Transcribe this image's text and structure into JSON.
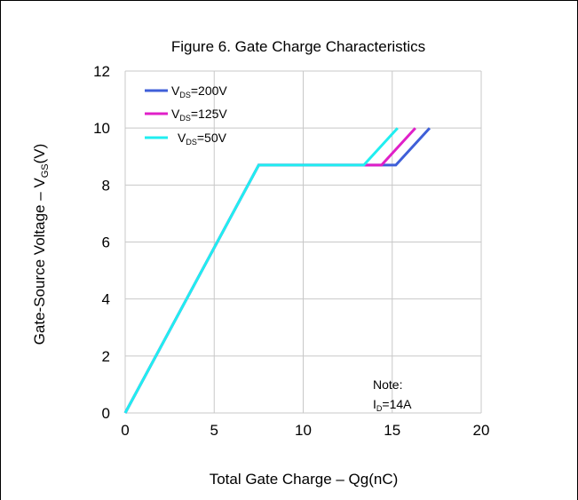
{
  "chart_data": {
    "type": "line",
    "title": "Figure 6. Gate Charge Characteristics",
    "xlabel": "Total Gate Charge – Qg(nC)",
    "ylabel": "Gate-Source Voltage – VGS(V)",
    "xlim": [
      0,
      20
    ],
    "ylim": [
      0,
      12
    ],
    "xticks": [
      0,
      5,
      10,
      15,
      20
    ],
    "yticks": [
      0,
      2,
      4,
      6,
      8,
      10,
      12
    ],
    "grid": true,
    "legend_position": "top-left",
    "series": [
      {
        "name": "VDS=200V",
        "label_main": "V",
        "label_sub": "DS",
        "label_rest": "=200V",
        "color": "#3f5fd8",
        "x": [
          0,
          7.5,
          15.2,
          17.1
        ],
        "y": [
          0,
          8.7,
          8.7,
          10
        ]
      },
      {
        "name": "VDS=125V",
        "label_main": "V",
        "label_sub": "DS",
        "label_rest": "=125V",
        "color": "#e020c8",
        "x": [
          0,
          7.5,
          14.4,
          16.3
        ],
        "y": [
          0,
          8.7,
          8.7,
          10
        ]
      },
      {
        "name": "VDS=50V",
        "label_main": "V",
        "label_sub": "DS",
        "label_rest": "=50V",
        "color": "#20eef0",
        "x": [
          0,
          7.5,
          13.4,
          15.3
        ],
        "y": [
          0,
          8.7,
          8.7,
          10
        ]
      }
    ],
    "annotation": {
      "line1": "Note:",
      "line2_main": "I",
      "line2_sub": "D",
      "line2_rest": "=14A"
    }
  }
}
